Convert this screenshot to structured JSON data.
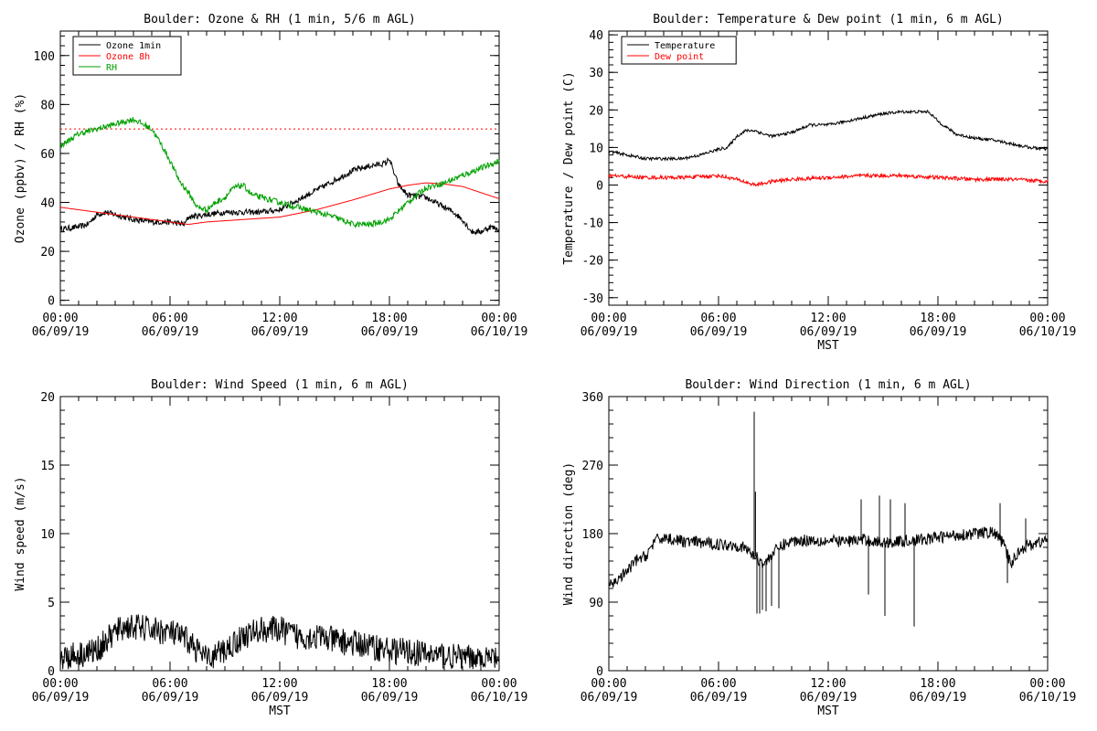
{
  "time_axis": {
    "tick_time_labels": [
      "00:00",
      "06:00",
      "12:00",
      "18:00",
      "00:00"
    ],
    "tick_date_labels": [
      "06/09/19",
      "06/09/19",
      "06/09/19",
      "06/09/19",
      "06/10/19"
    ],
    "xlabel": "MST"
  },
  "colors": {
    "black": "#000000",
    "red": "#ff0000",
    "green": "#00a000"
  },
  "chart_data": [
    {
      "type": "line",
      "title": "Boulder: Ozone & RH (1 min, 5/6 m AGL)",
      "xlabel": "",
      "ylabel": "Ozone (ppbv) / RH (%)",
      "x_units": "hours since 00:00 MST 06/09/19",
      "xlim": [
        0,
        24
      ],
      "ylim": [
        -2,
        110
      ],
      "yticks": [
        0,
        20,
        40,
        60,
        80,
        100
      ],
      "show_xlabel": false,
      "legend": {
        "placement": "top-left"
      },
      "reference_lines": [
        {
          "y": 70,
          "color": "#ff0000",
          "style": "dotted"
        }
      ],
      "series": [
        {
          "name": "Ozone 1min",
          "color": "#000000",
          "noise": 1.2,
          "x": [
            0,
            1,
            1.5,
            2,
            2.5,
            3,
            4,
            5,
            6,
            6.8,
            7,
            8,
            9,
            10,
            11,
            12,
            13,
            14,
            15,
            16,
            17,
            17.8,
            18,
            18.2,
            18.5,
            19,
            20,
            21,
            21.5,
            22,
            22.5,
            23,
            23.5,
            24
          ],
          "y": [
            29,
            30,
            31,
            35,
            36,
            35,
            33,
            32,
            32,
            31,
            34,
            35,
            36,
            36,
            36,
            37,
            41,
            45,
            49,
            53,
            55,
            56,
            58,
            53,
            47,
            43,
            42,
            38,
            36,
            33,
            28,
            28,
            30,
            29
          ]
        },
        {
          "name": "Ozone 8h",
          "color": "#ff0000",
          "noise": 0,
          "x": [
            0,
            2,
            4,
            6,
            7,
            8,
            10,
            12,
            14,
            16,
            18,
            19,
            20,
            21,
            22,
            23,
            24
          ],
          "y": [
            38,
            36,
            34,
            32,
            31,
            32,
            33,
            34,
            37,
            41,
            45.5,
            47,
            48,
            47.5,
            46.5,
            44,
            41.5
          ]
        },
        {
          "name": "RH",
          "color": "#00a000",
          "noise": 1.2,
          "x": [
            0,
            1,
            2,
            3,
            3.5,
            4,
            4.5,
            5,
            5.5,
            6,
            6.5,
            7,
            7.5,
            8,
            8.5,
            9,
            9.5,
            10,
            10.5,
            11,
            12,
            13,
            14,
            15,
            16,
            17,
            18,
            19,
            20,
            21,
            22,
            23,
            24
          ],
          "y": [
            63,
            68,
            70,
            72,
            73,
            74,
            72,
            70,
            64,
            57,
            49,
            44,
            38,
            37,
            40,
            42,
            46,
            47,
            43,
            42,
            40,
            38,
            36,
            34,
            31,
            31,
            33,
            40,
            46,
            48,
            51,
            54,
            57
          ]
        }
      ]
    },
    {
      "type": "line",
      "title": "Boulder: Temperature & Dew point (1 min, 6 m AGL)",
      "xlabel": "MST",
      "ylabel": "Temperature / Dew point (C)",
      "x_units": "hours since 00:00 MST 06/09/19",
      "xlim": [
        0,
        24
      ],
      "ylim": [
        -32,
        41
      ],
      "yticks": [
        -30,
        -20,
        -10,
        0,
        10,
        20,
        30,
        40
      ],
      "show_xlabel": true,
      "legend": {
        "placement": "top-left"
      },
      "reference_lines": [],
      "series": [
        {
          "name": "Temperature",
          "color": "#000000",
          "noise": 0.4,
          "x": [
            0,
            1,
            2,
            3,
            4,
            5,
            6,
            6.5,
            7,
            7.5,
            8,
            8.5,
            9,
            10,
            10.5,
            11,
            12,
            13,
            14,
            15,
            16,
            17,
            17.5,
            18,
            19,
            20,
            21,
            22,
            23,
            24
          ],
          "y": [
            9,
            8,
            7,
            7,
            7,
            8,
            9.5,
            10,
            13,
            14.5,
            14.5,
            13.5,
            13,
            14,
            15,
            16,
            16,
            17,
            18,
            19,
            19.5,
            19.5,
            19.5,
            17,
            13.5,
            12.5,
            12,
            11,
            10,
            9.5
          ]
        },
        {
          "name": "Dew point",
          "color": "#ff0000",
          "noise": 0.5,
          "x": [
            0,
            2,
            4,
            6,
            7,
            8,
            9,
            10,
            12,
            14,
            16,
            18,
            20,
            22,
            24
          ],
          "y": [
            2.5,
            2,
            2,
            2.5,
            1.5,
            0,
            1,
            1.5,
            2,
            2.5,
            2.5,
            2,
            1.5,
            1.5,
            1
          ]
        }
      ]
    },
    {
      "type": "line",
      "title": "Boulder: Wind Speed (1 min, 6 m AGL)",
      "xlabel": "MST",
      "ylabel": "Wind speed (m/s)",
      "x_units": "hours since 00:00 MST 06/09/19",
      "xlim": [
        0,
        24
      ],
      "ylim": [
        0,
        20
      ],
      "yticks": [
        0,
        5,
        10,
        15,
        20
      ],
      "show_xlabel": true,
      "series": [
        {
          "name": "",
          "color": "#000000",
          "noise": 1.0,
          "x": [
            0,
            1,
            2,
            3,
            3.5,
            4,
            5,
            6,
            7,
            7.5,
            8,
            9,
            10,
            11,
            12,
            13,
            14,
            15,
            16,
            17,
            18,
            19,
            20,
            21,
            22,
            23,
            24
          ],
          "y": [
            1,
            1.2,
            1.5,
            2.8,
            3.2,
            3.2,
            3,
            2.8,
            2.2,
            1.5,
            0.8,
            1.5,
            2.5,
            3,
            3,
            2.5,
            2.5,
            2.2,
            2,
            1.8,
            1.5,
            1.4,
            1.2,
            1.1,
            0.9,
            0.9,
            0.9
          ]
        }
      ]
    },
    {
      "type": "line",
      "title": "Boulder: Wind Direction (1 min, 6 m AGL)",
      "xlabel": "MST",
      "ylabel": "Wind direction (deg)",
      "x_units": "hours since 00:00 MST 06/09/19",
      "xlim": [
        0,
        24
      ],
      "ylim": [
        0,
        360
      ],
      "yticks": [
        0,
        90,
        180,
        270,
        360
      ],
      "show_xlabel": true,
      "series": [
        {
          "name": "",
          "color": "#000000",
          "noise": 8,
          "x": [
            0,
            0.5,
            1,
            1.5,
            2,
            2.5,
            3,
            4,
            5,
            6,
            7,
            7.5,
            8,
            8.5,
            9,
            9.5,
            10,
            11,
            12,
            13,
            14,
            15,
            16,
            17,
            18,
            19,
            20,
            21,
            21.5,
            22,
            22.5,
            23,
            24
          ],
          "y": [
            110,
            120,
            130,
            145,
            150,
            170,
            175,
            170,
            168,
            166,
            165,
            160,
            150,
            140,
            155,
            165,
            170,
            172,
            170,
            170,
            172,
            168,
            170,
            172,
            175,
            178,
            180,
            182,
            170,
            140,
            160,
            165,
            172
          ]
        }
      ],
      "spikes": [
        {
          "x": 7.95,
          "y": 340
        },
        {
          "x": 8.02,
          "y": 235
        },
        {
          "x": 8.1,
          "y": 75
        },
        {
          "x": 8.25,
          "y": 75
        },
        {
          "x": 8.4,
          "y": 80
        },
        {
          "x": 8.6,
          "y": 78
        },
        {
          "x": 8.9,
          "y": 85
        },
        {
          "x": 9.3,
          "y": 82
        },
        {
          "x": 13.8,
          "y": 225
        },
        {
          "x": 14.2,
          "y": 100
        },
        {
          "x": 14.8,
          "y": 230
        },
        {
          "x": 15.1,
          "y": 72
        },
        {
          "x": 15.4,
          "y": 225
        },
        {
          "x": 16.2,
          "y": 220
        },
        {
          "x": 16.7,
          "y": 58
        },
        {
          "x": 21.4,
          "y": 220
        },
        {
          "x": 21.8,
          "y": 115
        },
        {
          "x": 22.8,
          "y": 200
        }
      ]
    }
  ]
}
